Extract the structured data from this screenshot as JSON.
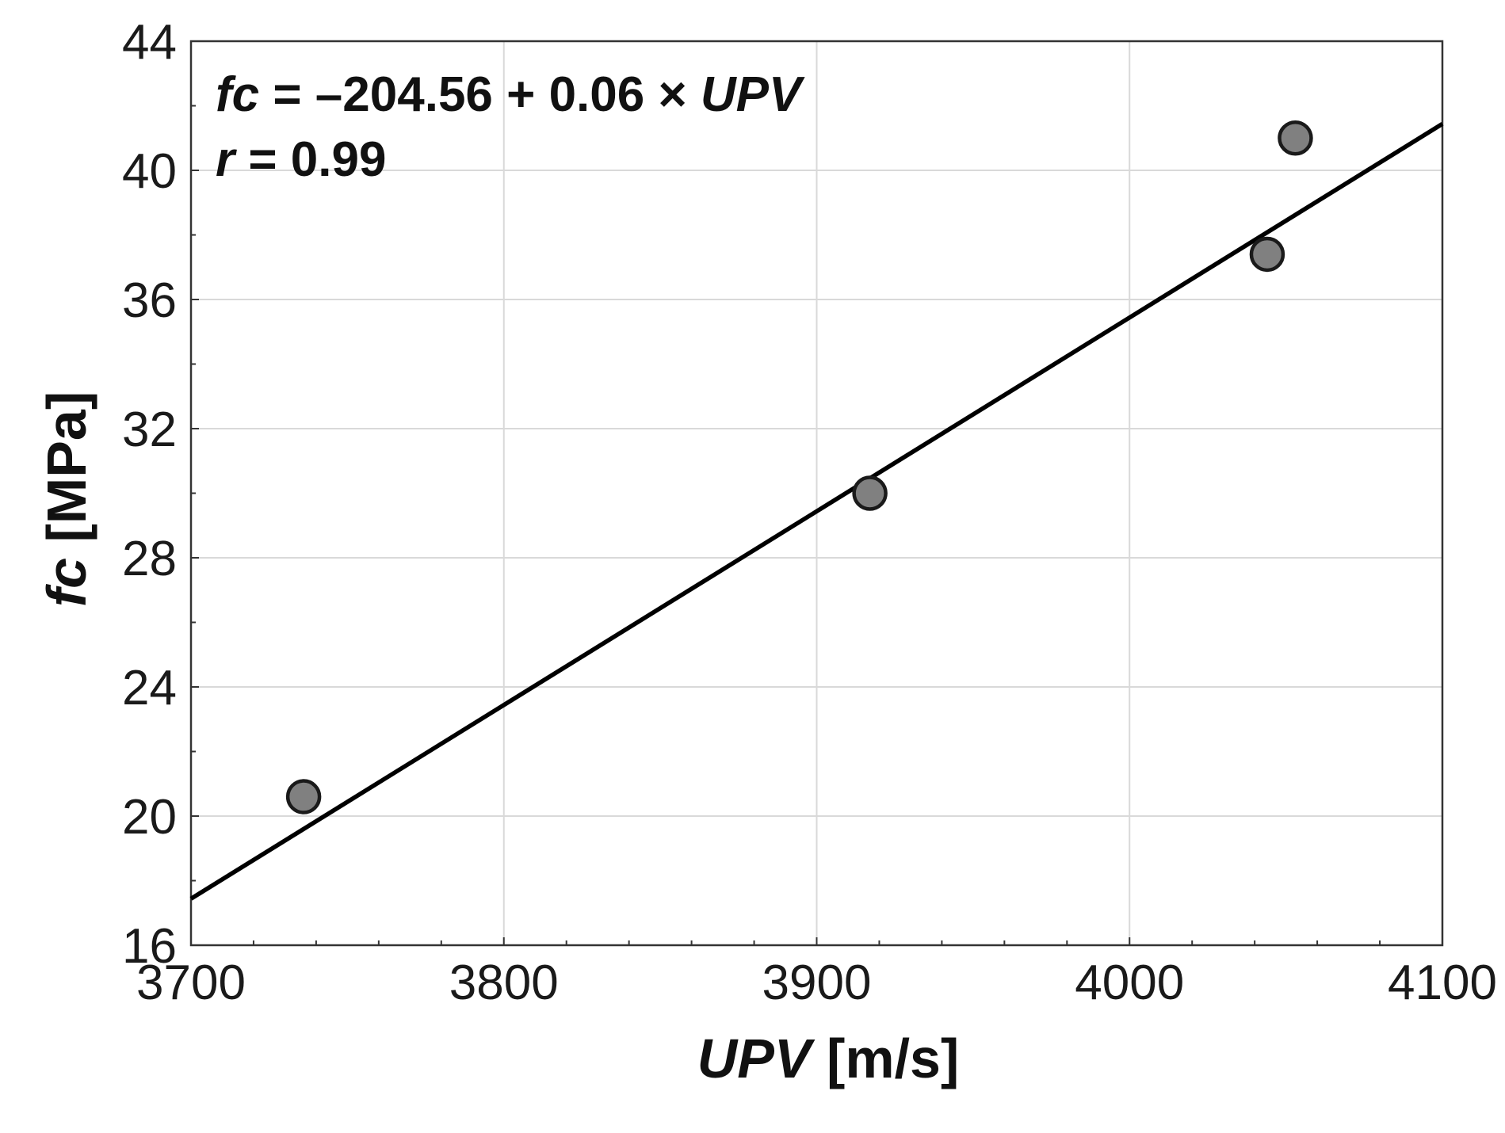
{
  "chart_data": {
    "type": "scatter",
    "xlabel": {
      "italic": "UPV",
      "rest": " [m/s]"
    },
    "ylabel": {
      "italic": "fc",
      "rest": " [MPa]"
    },
    "xlim": [
      3700,
      4100
    ],
    "ylim": [
      16,
      44
    ],
    "x_ticks": [
      3700,
      3800,
      3900,
      4000,
      4100
    ],
    "y_ticks": [
      16,
      20,
      24,
      28,
      32,
      36,
      40,
      44
    ],
    "x_tick_labels": [
      "3700",
      "3800",
      "3900",
      "4000",
      "4100"
    ],
    "y_tick_labels": [
      "16",
      "20",
      "24",
      "28",
      "32",
      "36",
      "40",
      "44"
    ],
    "grid": true,
    "points": [
      {
        "x": 3736,
        "y": 20.6
      },
      {
        "x": 3917,
        "y": 30.0
      },
      {
        "x": 4044,
        "y": 37.4
      },
      {
        "x": 4053,
        "y": 41.0
      }
    ],
    "fit_line": {
      "intercept": -204.56,
      "slope": 0.06,
      "x_range": [
        3700,
        4100
      ]
    },
    "annotation": {
      "equation": {
        "lhs": "fc",
        "mid": " = –204.56 + 0.06 × ",
        "var": "UPV"
      },
      "r": {
        "var": "r",
        "rest": " = 0.99"
      }
    },
    "colors": {
      "point_fill": "#808080",
      "point_stroke": "#1a1a1a",
      "line": "#000000",
      "grid": "#d9d9d9",
      "axis": "#333333"
    }
  }
}
